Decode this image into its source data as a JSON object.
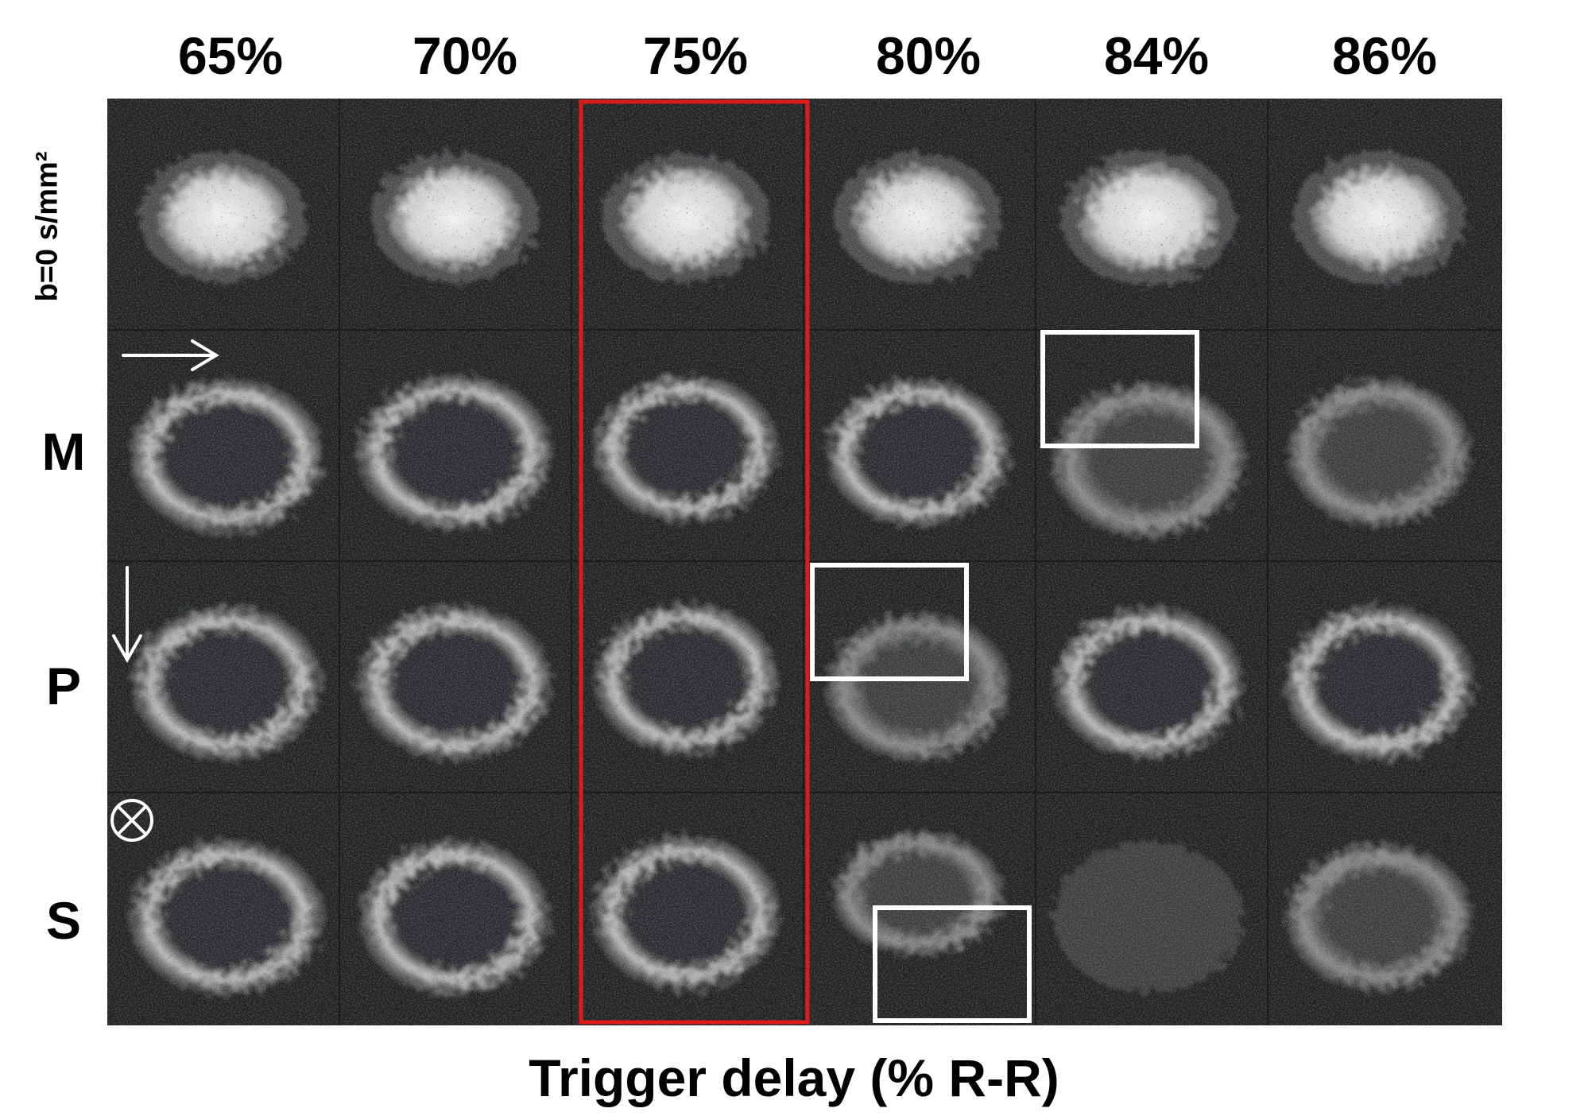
{
  "column_headers": [
    "65%",
    "70%",
    "75%",
    "80%",
    "84%",
    "86%"
  ],
  "row_labels": [
    "b=0 s/mm²",
    "M",
    "P",
    "S"
  ],
  "x_axis_title": "Trigger delay (% R-R)",
  "highlighted_column": "75%",
  "colors": {
    "highlight_box": "#e0191a",
    "roi_box": "#ffffff",
    "background": "#1c1e20"
  },
  "icons": [
    "arrow-right-icon",
    "arrow-down-icon",
    "circled-times-icon"
  ]
}
